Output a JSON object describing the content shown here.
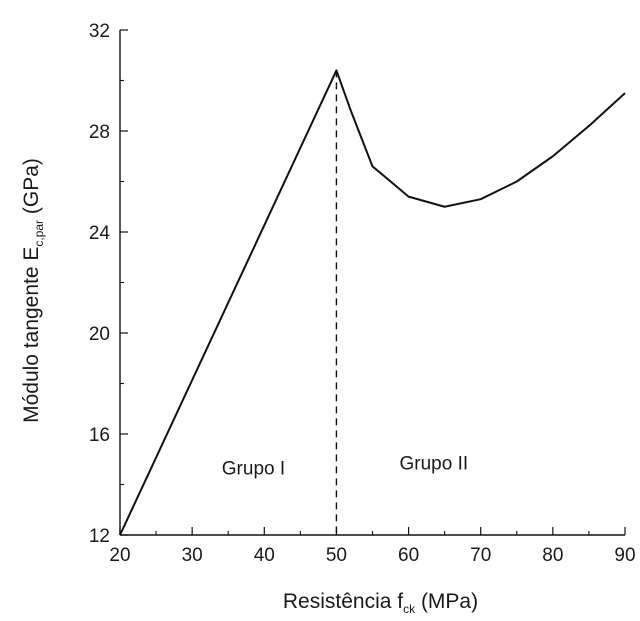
{
  "chart_data": {
    "type": "line",
    "xlabel": {
      "main": "Resistência f",
      "sub": "ck",
      "tail": " (MPa)"
    },
    "ylabel": {
      "main": "Módulo tangente E",
      "sub": "c,par",
      "tail": " (GPa)"
    },
    "xlim": [
      20,
      90
    ],
    "ylim": [
      12,
      32
    ],
    "x_ticks": [
      20,
      30,
      40,
      50,
      60,
      70,
      80,
      90
    ],
    "y_ticks": [
      12,
      16,
      20,
      24,
      28,
      32
    ],
    "grid": false,
    "series": [
      {
        "color": "#111111",
        "x": [
          20,
          50,
          52,
          55,
          60,
          65,
          70,
          75,
          80,
          85,
          90
        ],
        "y": [
          12.0,
          30.4,
          28.8,
          26.6,
          25.4,
          25.0,
          25.3,
          26.0,
          27.0,
          28.2,
          29.5
        ]
      }
    ],
    "divider": {
      "x": 50,
      "style": "dashed"
    },
    "annotations": [
      {
        "text": "Grupo I",
        "x": 38.5,
        "y": 14.4
      },
      {
        "text": "Grupo II",
        "x": 63.5,
        "y": 14.6
      }
    ]
  }
}
